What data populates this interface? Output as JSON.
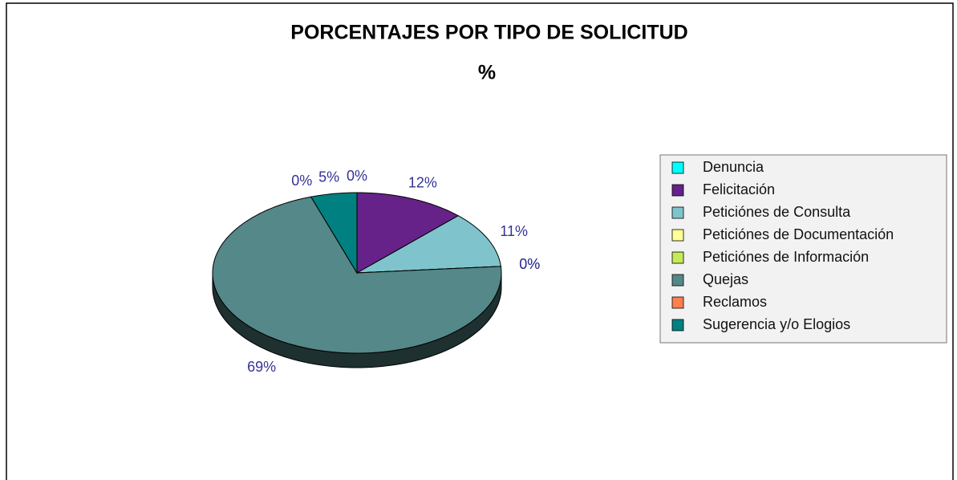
{
  "chart_data": {
    "type": "pie",
    "title": "PORCENTAJES POR TIPO DE SOLICITUD",
    "subtitle": "%",
    "categories": [
      "Denuncia",
      "Felicitación",
      "Peticiónes de Consulta",
      "Peticiónes de Documentación",
      "Peticiónes de Información",
      "Quejas",
      "Reclamos",
      "Sugerencia y/o Elogios"
    ],
    "values": [
      0,
      12,
      11,
      0,
      0,
      69,
      0,
      5
    ],
    "value_labels": [
      "0%",
      "12%",
      "11%",
      "0%",
      "0%",
      "69%",
      "0%",
      "5%"
    ],
    "colors": [
      "#00ffff",
      "#662288",
      "#7fc4cc",
      "#ffff99",
      "#c4ea5a",
      "#558888",
      "#ff7f50",
      "#008080"
    ],
    "legend": "right"
  }
}
